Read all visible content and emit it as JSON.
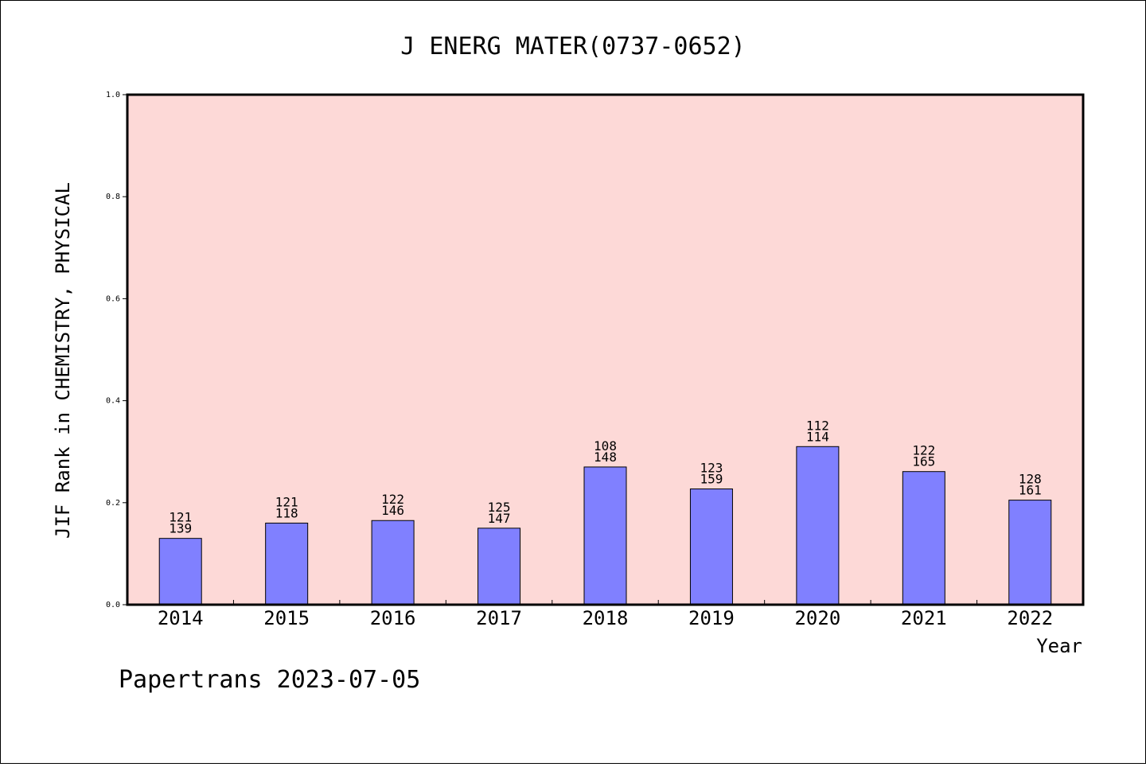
{
  "chart_data": {
    "type": "bar",
    "title": "J ENERG MATER(0737-0652)",
    "xlabel": "Year",
    "ylabel": "JIF Rank in CHEMISTRY, PHYSICAL",
    "ylim": [
      0,
      1.0
    ],
    "yticks": [
      "0.0",
      "0.2",
      "0.4",
      "0.6",
      "0.8",
      "1.0"
    ],
    "categories": [
      "2014",
      "2015",
      "2016",
      "2017",
      "2018",
      "2019",
      "2020",
      "2021",
      "2022"
    ],
    "values": [
      0.13,
      0.16,
      0.165,
      0.15,
      0.27,
      0.227,
      0.31,
      0.261,
      0.205
    ],
    "labels_top": [
      "121",
      "121",
      "122",
      "125",
      "108",
      "123",
      "112",
      "122",
      "128"
    ],
    "labels_bottom": [
      "139",
      "118",
      "146",
      "147",
      "148",
      "159",
      "114",
      "165",
      "161"
    ],
    "grid": false,
    "colors": {
      "plot_background": "#fdd9d7",
      "bar_fill": "#8080ff",
      "bar_stroke": "#000000"
    }
  },
  "footer": {
    "text": "Papertrans 2023-07-05"
  }
}
